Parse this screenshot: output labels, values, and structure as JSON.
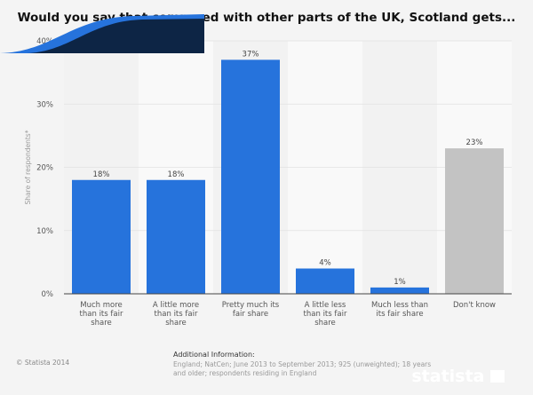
{
  "chart_data": {
    "type": "bar",
    "title": "Would you say that compared with other parts of the UK, Scotland gets...",
    "ylabel": "Share of respondents*",
    "ylim": [
      0,
      40
    ],
    "yticks": [
      "0%",
      "10%",
      "20%",
      "30%",
      "40%"
    ],
    "grid": true,
    "categories": [
      "Much more than its fair share",
      "A little more than its fair share",
      "Pretty much its fair share",
      "A little less than its fair share",
      "Much less than its fair share",
      "Don't know"
    ],
    "category_lines": [
      [
        "Much more",
        "than its fair",
        "share"
      ],
      [
        "A little more",
        "than its fair",
        "share"
      ],
      [
        "Pretty much its",
        "fair share"
      ],
      [
        "A little less",
        "than its fair",
        "share"
      ],
      [
        "Much less than",
        "its fair share"
      ],
      [
        "Don't know"
      ]
    ],
    "values": [
      18,
      18,
      37,
      4,
      1,
      23
    ],
    "data_labels": [
      "18%",
      "18%",
      "37%",
      "4%",
      "1%",
      "23%"
    ],
    "colors": [
      "#2673dc",
      "#2673dc",
      "#2673dc",
      "#2673dc",
      "#2673dc",
      "#c3c3c3"
    ]
  },
  "footer": {
    "copyright": "© Statista 2014",
    "additional_title": "Additional Information:",
    "additional_text": "England; NatCen; June 2013 to September 2013; 925 (unweighted); 18 years and older; respondents residing in England",
    "logo": "statista"
  }
}
